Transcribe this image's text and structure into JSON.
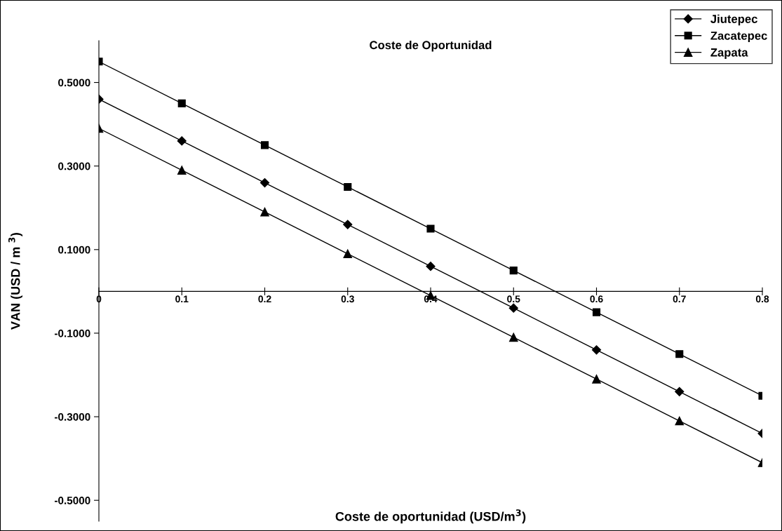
{
  "chart_data": {
    "type": "line",
    "title": "Coste de Oportunidad",
    "xlabel": "Coste de oportunidad (USD/m$^{3}$)",
    "ylabel": "VAN (USD / m $^{3}$)",
    "x": [
      0,
      0.1,
      0.2,
      0.3,
      0.4,
      0.5,
      0.6,
      0.7,
      0.8
    ],
    "series": [
      {
        "name": "Jiutepec",
        "color": "#000000",
        "marker": "diamond",
        "values": [
          0.46,
          0.36,
          0.26,
          0.16,
          0.06,
          -0.04,
          -0.14,
          -0.24,
          -0.34
        ]
      },
      {
        "name": "Zacatepec",
        "color": "#000000",
        "marker": "square",
        "values": [
          0.55,
          0.45,
          0.35,
          0.25,
          0.15,
          0.05,
          -0.05,
          -0.15,
          -0.25
        ]
      },
      {
        "name": "Zapata",
        "color": "#000000",
        "marker": "triangle",
        "values": [
          0.39,
          0.29,
          0.19,
          0.09,
          -0.01,
          -0.11,
          -0.21,
          -0.31,
          -0.41
        ]
      }
    ],
    "xlim": [
      0,
      0.8
    ],
    "xticks": [
      0,
      0.1,
      0.2,
      0.3,
      0.4,
      0.5,
      0.6,
      0.7,
      0.8
    ],
    "ylim": [
      -0.55,
      0.6
    ],
    "yticks": [
      {
        "value": -0.5,
        "label": "-0.5000"
      },
      {
        "value": -0.3,
        "label": "-0.3000"
      },
      {
        "value": -0.1,
        "label": "-0.1000"
      },
      {
        "value": 0.1,
        "label": "0.1000"
      },
      {
        "value": 0.3,
        "label": "0.3000"
      },
      {
        "value": 0.5,
        "label": "0.5000"
      }
    ],
    "grid": false,
    "legend": "top right",
    "line_style": "solid"
  }
}
